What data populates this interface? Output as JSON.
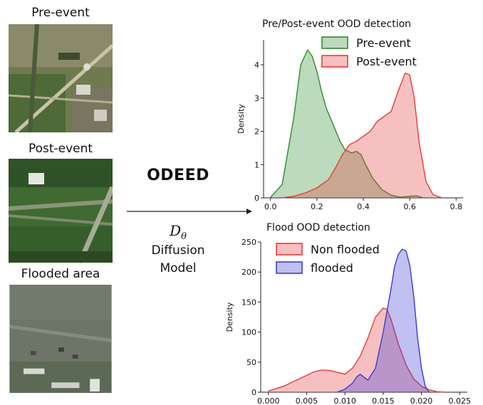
{
  "left_panel": {
    "pre_label": "Pre-event",
    "post_label": "Post-event",
    "flooded_label": "Flooded area"
  },
  "middle": {
    "title": "ODEED",
    "symbol": "Dθ",
    "line1": "Diffusion",
    "line2": "Model"
  },
  "chart_data": [
    {
      "type": "area",
      "title": "Pre/Post-event OOD detection",
      "xlabel": "",
      "ylabel": "Density",
      "xlim": [
        -0.03,
        0.83
      ],
      "ylim": [
        0,
        4.75
      ],
      "xticks": [
        "0.0",
        "0.2",
        "0.4",
        "0.6",
        "0.8"
      ],
      "yticks": [
        "0",
        "1",
        "2",
        "3",
        "4"
      ],
      "legend": "top-right",
      "series": [
        {
          "name": "Pre-event",
          "color": "#2e8b2e",
          "x": [
            0.0,
            0.05,
            0.1,
            0.13,
            0.16,
            0.18,
            0.2,
            0.22,
            0.24,
            0.27,
            0.3,
            0.32,
            0.35,
            0.37,
            0.39,
            0.41,
            0.44,
            0.48,
            0.52,
            0.56,
            0.6,
            0.63,
            0.66
          ],
          "y": [
            0.02,
            0.4,
            2.4,
            4.0,
            4.45,
            4.25,
            3.8,
            3.2,
            2.7,
            2.2,
            1.7,
            1.45,
            1.35,
            1.4,
            1.3,
            1.0,
            0.6,
            0.25,
            0.08,
            0.02,
            0.05,
            0.06,
            0.0
          ]
        },
        {
          "name": "Post-event",
          "color": "#e63c3c",
          "x": [
            0.05,
            0.1,
            0.15,
            0.2,
            0.25,
            0.28,
            0.31,
            0.34,
            0.37,
            0.4,
            0.43,
            0.46,
            0.49,
            0.52,
            0.55,
            0.58,
            0.6,
            0.62,
            0.64,
            0.67,
            0.7,
            0.74
          ],
          "y": [
            0.0,
            0.05,
            0.15,
            0.3,
            0.55,
            0.9,
            1.3,
            1.6,
            1.7,
            1.85,
            2.0,
            2.3,
            2.45,
            2.6,
            3.2,
            3.75,
            3.7,
            3.0,
            1.7,
            0.5,
            0.1,
            0.0
          ]
        }
      ]
    },
    {
      "type": "area",
      "title": "Flood OOD detection",
      "xlabel": "",
      "ylabel": "Density",
      "xlim": [
        -0.001,
        0.026
      ],
      "ylim": [
        0,
        250
      ],
      "xticks": [
        "0.000",
        "0.005",
        "0.010",
        "0.015",
        "0.020",
        "0.025"
      ],
      "yticks": [
        "0",
        "50",
        "100",
        "150",
        "200",
        "250"
      ],
      "legend": "top-left",
      "series": [
        {
          "name": "Non flooded",
          "color": "#e63c3c",
          "x": [
            0.0,
            0.002,
            0.004,
            0.006,
            0.007,
            0.008,
            0.009,
            0.01,
            0.011,
            0.012,
            0.013,
            0.014,
            0.015,
            0.0155,
            0.016,
            0.017,
            0.018,
            0.019,
            0.02,
            0.021,
            0.022,
            0.023
          ],
          "y": [
            2,
            10,
            22,
            34,
            37,
            36,
            33,
            30,
            40,
            60,
            90,
            125,
            140,
            138,
            122,
            80,
            45,
            22,
            10,
            4,
            1,
            0
          ]
        },
        {
          "name": "flooded",
          "color": "#3b3bd6",
          "x": [
            0.009,
            0.01,
            0.011,
            0.0115,
            0.012,
            0.0125,
            0.013,
            0.014,
            0.015,
            0.016,
            0.0165,
            0.017,
            0.0175,
            0.018,
            0.0185,
            0.019,
            0.0195,
            0.02,
            0.0205,
            0.021
          ],
          "y": [
            0,
            5,
            15,
            25,
            30,
            25,
            20,
            40,
            100,
            170,
            210,
            230,
            238,
            235,
            210,
            160,
            90,
            40,
            10,
            0
          ]
        }
      ]
    }
  ]
}
